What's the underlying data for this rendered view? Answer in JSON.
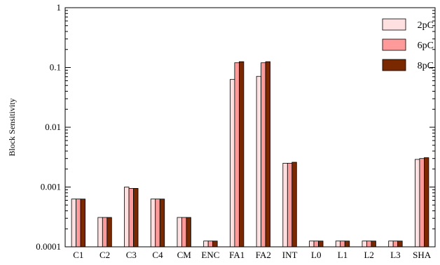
{
  "chart_data": {
    "type": "bar",
    "ylabel": "Block Sensitivity",
    "y_scale": "log",
    "ylim": [
      0.0001,
      1
    ],
    "y_ticks": [
      "1",
      "0.1",
      "0.01",
      "0.001",
      "0.0001"
    ],
    "categories": [
      "C1",
      "C2",
      "C3",
      "C4",
      "CM",
      "ENC",
      "FA1",
      "FA2",
      "INT",
      "L0",
      "L1",
      "L2",
      "L3",
      "SHA"
    ],
    "grid": false,
    "legend_position": "top-right",
    "series": [
      {
        "name": "2pC",
        "color": "#ffe0e0",
        "values": [
          0.00063,
          0.00031,
          0.001,
          0.00063,
          0.00031,
          0.000125,
          0.063,
          0.071,
          0.0025,
          0.000125,
          0.000125,
          0.000125,
          0.000125,
          0.0029
        ]
      },
      {
        "name": "6pC",
        "color": "#ff9a9a",
        "values": [
          0.00063,
          0.00031,
          0.00095,
          0.00063,
          0.00031,
          0.000125,
          0.12,
          0.12,
          0.0025,
          0.000125,
          0.000125,
          0.000125,
          0.000125,
          0.003
        ]
      },
      {
        "name": "8pC",
        "color": "#7a2800",
        "values": [
          0.00063,
          0.00031,
          0.00095,
          0.00063,
          0.00031,
          0.000125,
          0.125,
          0.125,
          0.0026,
          0.000125,
          0.000125,
          0.000125,
          0.000125,
          0.0031
        ]
      }
    ]
  }
}
